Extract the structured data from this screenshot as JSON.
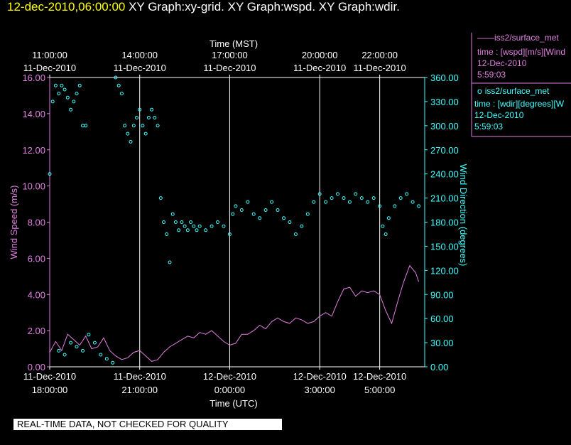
{
  "header": {
    "timestamp": "12-dec-2010,06:00:00",
    "title": "XY Graph:xy-grid.  XY Graph:wspd.  XY Graph:wdir."
  },
  "legend": [
    {
      "marker": "——",
      "name": "iss2/surface_met",
      "line1": "time : [wspd][m/s][Wind",
      "line2": "12-Dec-2010",
      "line3": "5:59:03",
      "color": "#e080e0"
    },
    {
      "marker": "o",
      "name": "iss2/surface_met",
      "line1": "time : [wdir][degrees][W",
      "line2": "12-Dec-2010",
      "line3": "5:59:03",
      "color": "#40ffff"
    }
  ],
  "disclaimer": "REAL-TIME DATA, NOT CHECKED FOR QUALITY",
  "chart_data": {
    "type": "line",
    "top_axis": {
      "label": "Time (MST)",
      "ticks": [
        {
          "t": 0,
          "time": "11:00:00",
          "date": "11-Dec-2010"
        },
        {
          "t": 3,
          "time": "14:00:00",
          "date": "11-Dec-2010"
        },
        {
          "t": 6,
          "time": "17:00:00",
          "date": "11-Dec-2010"
        },
        {
          "t": 9,
          "time": "20:00:00",
          "date": "11-Dec-2010"
        },
        {
          "t": 11,
          "time": "22:00:00",
          "date": "11-Dec-2010"
        }
      ]
    },
    "bottom_axis": {
      "label": "Time (UTC)",
      "ticks": [
        {
          "t": 0,
          "date": "11-Dec-2010",
          "time": "18:00:00"
        },
        {
          "t": 3,
          "date": "11-Dec-2010",
          "time": "21:00:00"
        },
        {
          "t": 6,
          "date": "12-Dec-2010",
          "time": "0:00:00"
        },
        {
          "t": 9,
          "date": "12-Dec-2010",
          "time": "3:00:00"
        },
        {
          "t": 11,
          "date": "12-Dec-2010",
          "time": "5:00:00"
        }
      ]
    },
    "x_range_hours": [
      0,
      12.5
    ],
    "left_axis": {
      "label": "Wind Speed (m/s)",
      "ylim": [
        0,
        16
      ],
      "ticks": [
        "0.00",
        "2.00",
        "4.00",
        "6.00",
        "8.00",
        "10.00",
        "12.00",
        "14.00",
        "16.00"
      ],
      "color": "#e080e0"
    },
    "right_axis": {
      "label": "Wind Direction (degrees)",
      "ylim": [
        0,
        360
      ],
      "ticks": [
        "0.00",
        "30.00",
        "60.00",
        "90.00",
        "120.00",
        "150.00",
        "180.00",
        "210.00",
        "240.00",
        "270.00",
        "300.00",
        "330.00",
        "360.00"
      ],
      "color": "#40ffff"
    },
    "grid": "vertical lines at labeled time ticks",
    "series": [
      {
        "name": "iss2/surface_met wspd",
        "axis": "left",
        "style": "line",
        "color": "#e080e0",
        "points": [
          [
            0,
            0.8
          ],
          [
            0.2,
            1.4
          ],
          [
            0.4,
            0.9
          ],
          [
            0.6,
            1.8
          ],
          [
            0.8,
            1.5
          ],
          [
            1.0,
            1.2
          ],
          [
            1.2,
            1.7
          ],
          [
            1.4,
            1.0
          ],
          [
            1.6,
            1.1
          ],
          [
            1.8,
            1.6
          ],
          [
            2.0,
            0.9
          ],
          [
            2.2,
            0.6
          ],
          [
            2.4,
            0.4
          ],
          [
            2.6,
            0.5
          ],
          [
            2.8,
            0.8
          ],
          [
            3.0,
            0.9
          ],
          [
            3.2,
            0.6
          ],
          [
            3.4,
            0.3
          ],
          [
            3.6,
            0.4
          ],
          [
            3.8,
            0.8
          ],
          [
            4.0,
            1.1
          ],
          [
            4.2,
            1.3
          ],
          [
            4.4,
            1.5
          ],
          [
            4.6,
            1.7
          ],
          [
            4.8,
            1.6
          ],
          [
            5.0,
            1.9
          ],
          [
            5.2,
            1.8
          ],
          [
            5.4,
            2.0
          ],
          [
            5.6,
            1.7
          ],
          [
            5.8,
            1.4
          ],
          [
            6.0,
            1.2
          ],
          [
            6.2,
            1.3
          ],
          [
            6.4,
            1.8
          ],
          [
            6.6,
            1.8
          ],
          [
            6.8,
            2.0
          ],
          [
            7.0,
            2.3
          ],
          [
            7.2,
            2.1
          ],
          [
            7.4,
            2.5
          ],
          [
            7.6,
            2.7
          ],
          [
            7.8,
            2.5
          ],
          [
            8.0,
            2.4
          ],
          [
            8.2,
            2.7
          ],
          [
            8.4,
            2.6
          ],
          [
            8.6,
            2.4
          ],
          [
            8.8,
            2.5
          ],
          [
            9.0,
            2.8
          ],
          [
            9.2,
            3.0
          ],
          [
            9.4,
            2.8
          ],
          [
            9.6,
            3.6
          ],
          [
            9.8,
            4.3
          ],
          [
            10.0,
            4.4
          ],
          [
            10.2,
            3.9
          ],
          [
            10.4,
            4.2
          ],
          [
            10.6,
            4.1
          ],
          [
            10.8,
            4.2
          ],
          [
            11.0,
            4.0
          ],
          [
            11.2,
            3.1
          ],
          [
            11.4,
            2.4
          ],
          [
            11.6,
            3.6
          ],
          [
            11.8,
            4.7
          ],
          [
            12.0,
            5.6
          ],
          [
            12.2,
            5.2
          ],
          [
            12.3,
            4.7
          ]
        ]
      },
      {
        "name": "iss2/surface_met wdir",
        "axis": "right",
        "style": "markers",
        "color": "#40ffff",
        "points": [
          [
            0.0,
            240
          ],
          [
            0.1,
            330
          ],
          [
            0.2,
            350
          ],
          [
            0.3,
            340
          ],
          [
            0.4,
            350
          ],
          [
            0.5,
            345
          ],
          [
            0.6,
            335
          ],
          [
            0.7,
            320
          ],
          [
            0.8,
            330
          ],
          [
            0.9,
            340
          ],
          [
            1.0,
            350
          ],
          [
            1.1,
            300
          ],
          [
            1.2,
            300
          ],
          [
            0.3,
            20
          ],
          [
            0.5,
            15
          ],
          [
            0.7,
            30
          ],
          [
            0.9,
            25
          ],
          [
            1.1,
            20
          ],
          [
            1.3,
            40
          ],
          [
            1.5,
            30
          ],
          [
            1.7,
            15
          ],
          [
            1.9,
            10
          ],
          [
            2.1,
            5
          ],
          [
            2.2,
            360
          ],
          [
            2.3,
            350
          ],
          [
            2.4,
            340
          ],
          [
            2.5,
            300
          ],
          [
            2.6,
            290
          ],
          [
            2.7,
            280
          ],
          [
            2.8,
            300
          ],
          [
            2.9,
            310
          ],
          [
            3.0,
            320
          ],
          [
            3.1,
            300
          ],
          [
            3.2,
            290
          ],
          [
            3.3,
            310
          ],
          [
            3.4,
            320
          ],
          [
            3.5,
            310
          ],
          [
            3.6,
            300
          ],
          [
            3.7,
            210
          ],
          [
            3.8,
            180
          ],
          [
            3.9,
            165
          ],
          [
            4.0,
            130
          ],
          [
            4.1,
            190
          ],
          [
            4.2,
            180
          ],
          [
            4.3,
            170
          ],
          [
            4.4,
            180
          ],
          [
            4.5,
            175
          ],
          [
            4.6,
            170
          ],
          [
            4.7,
            180
          ],
          [
            4.8,
            175
          ],
          [
            4.9,
            170
          ],
          [
            5.0,
            175
          ],
          [
            5.2,
            170
          ],
          [
            5.4,
            175
          ],
          [
            5.6,
            180
          ],
          [
            5.8,
            175
          ],
          [
            6.0,
            165
          ],
          [
            6.1,
            190
          ],
          [
            6.2,
            200
          ],
          [
            6.4,
            195
          ],
          [
            6.6,
            205
          ],
          [
            6.8,
            190
          ],
          [
            7.0,
            185
          ],
          [
            7.2,
            195
          ],
          [
            7.4,
            205
          ],
          [
            7.6,
            195
          ],
          [
            7.8,
            185
          ],
          [
            8.0,
            180
          ],
          [
            8.2,
            165
          ],
          [
            8.4,
            175
          ],
          [
            8.6,
            190
          ],
          [
            8.8,
            205
          ],
          [
            9.0,
            215
          ],
          [
            9.2,
            205
          ],
          [
            9.4,
            210
          ],
          [
            9.6,
            215
          ],
          [
            9.8,
            210
          ],
          [
            10.0,
            205
          ],
          [
            10.2,
            215
          ],
          [
            10.4,
            210
          ],
          [
            10.6,
            205
          ],
          [
            10.8,
            210
          ],
          [
            11.0,
            200
          ],
          [
            11.1,
            175
          ],
          [
            11.2,
            165
          ],
          [
            11.3,
            185
          ],
          [
            11.5,
            200
          ],
          [
            11.7,
            210
          ],
          [
            11.9,
            215
          ],
          [
            12.1,
            205
          ],
          [
            12.3,
            200
          ]
        ]
      }
    ]
  }
}
